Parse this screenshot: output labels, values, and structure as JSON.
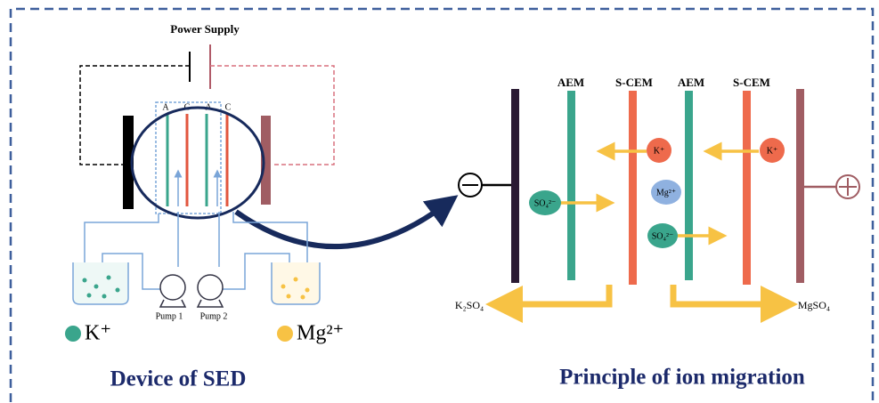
{
  "device": {
    "power_supply": "Power Supply",
    "membrane_labels": [
      "A",
      "C",
      "A",
      "C"
    ],
    "pumps": [
      "Pump 1",
      "Pump 2"
    ],
    "legend": [
      "K⁺",
      "Mg²⁺"
    ],
    "title": "Device of SED"
  },
  "principle": {
    "membranes": [
      "AEM",
      "S-CEM",
      "AEM",
      "S-CEM"
    ],
    "ions": [
      "K⁺",
      "K⁺",
      "Mg²⁺",
      "SO₄²⁻",
      "SO₄²⁻"
    ],
    "products": [
      "K₂SO₄",
      "MgSO₄"
    ],
    "title": "Principle of ion migration"
  }
}
